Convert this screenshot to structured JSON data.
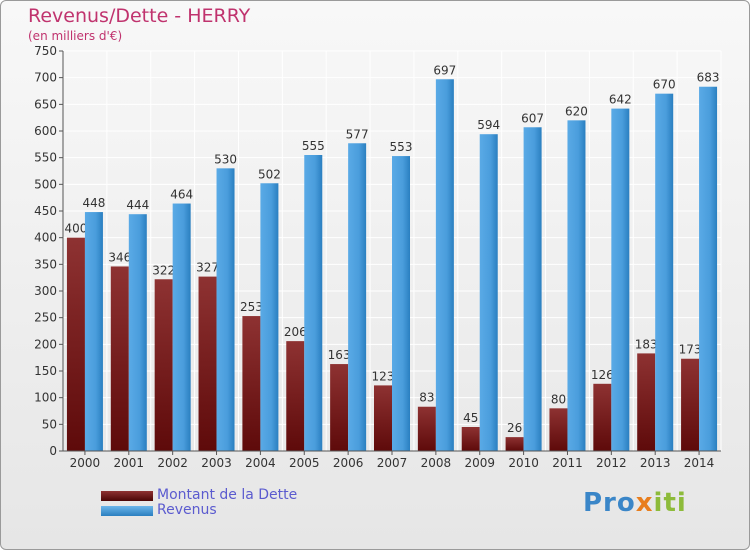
{
  "title": "Revenus/Dette - HERRY",
  "subtitle": "(en milliers d'€)",
  "logo": {
    "p1": "Pro",
    "p2": "x",
    "p3": "iti"
  },
  "colors": {
    "dette_dark": "#5e0a0a",
    "dette_light": "#8e3232",
    "revenus_dark": "#2a7fc0",
    "revenus_light": "#5aaae6",
    "grid": "#ffffff",
    "text": "#333333"
  },
  "chart_data": {
    "type": "bar",
    "title": "Revenus/Dette - HERRY",
    "subtitle": "(en milliers d'€)",
    "categories": [
      "2000",
      "2001",
      "2002",
      "2003",
      "2004",
      "2005",
      "2006",
      "2007",
      "2008",
      "2009",
      "2010",
      "2011",
      "2012",
      "2013",
      "2014"
    ],
    "series": [
      {
        "name": "Montant de la Dette",
        "values": [
          400,
          346,
          322,
          327,
          253,
          206,
          163,
          123,
          83,
          45,
          26,
          80,
          126,
          183,
          173
        ]
      },
      {
        "name": "Revenus",
        "values": [
          448,
          444,
          464,
          530,
          502,
          555,
          577,
          553,
          697,
          594,
          607,
          620,
          642,
          670,
          683
        ]
      }
    ],
    "ylim": [
      0,
      750
    ],
    "yticks": [
      0,
      50,
      100,
      150,
      200,
      250,
      300,
      350,
      400,
      450,
      500,
      550,
      600,
      650,
      700,
      750
    ],
    "xlabel": "",
    "ylabel": "",
    "grid": true,
    "legend": "bottom-left"
  }
}
